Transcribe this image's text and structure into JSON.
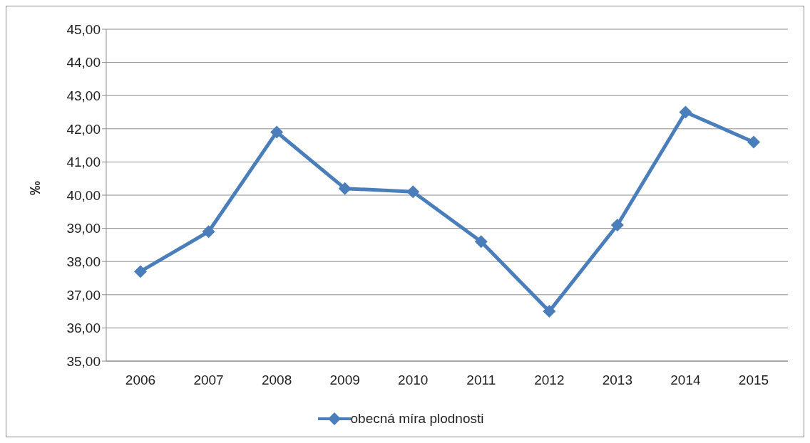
{
  "chart_data": {
    "type": "line",
    "ylabel": "‰",
    "categories": [
      "2006",
      "2007",
      "2008",
      "2009",
      "2010",
      "2011",
      "2012",
      "2013",
      "2014",
      "2015"
    ],
    "series": [
      {
        "name": "obecná míra plodnosti",
        "color": "#4a7ebb",
        "values": [
          37.7,
          38.9,
          41.9,
          40.2,
          40.1,
          38.6,
          36.5,
          39.1,
          42.5,
          41.6
        ]
      }
    ],
    "ylim": [
      35,
      45
    ],
    "yticks": [
      {
        "value": 35,
        "label": "35,00"
      },
      {
        "value": 36,
        "label": "36,00"
      },
      {
        "value": 37,
        "label": "37,00"
      },
      {
        "value": 38,
        "label": "38,00"
      },
      {
        "value": 39,
        "label": "39,00"
      },
      {
        "value": 40,
        "label": "40,00"
      },
      {
        "value": 41,
        "label": "41,00"
      },
      {
        "value": 42,
        "label": "42,00"
      },
      {
        "value": 43,
        "label": "43,00"
      },
      {
        "value": 44,
        "label": "44,00"
      },
      {
        "value": 45,
        "label": "45,00"
      }
    ],
    "grid": "y",
    "legend": "bottom",
    "marker": "diamond",
    "line_style": "solid"
  }
}
